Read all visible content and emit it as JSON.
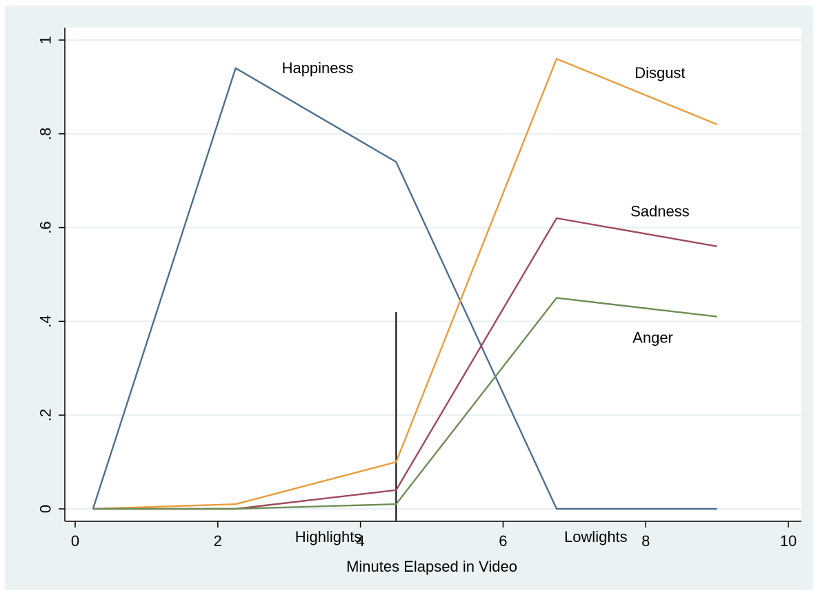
{
  "chart_data": {
    "type": "line",
    "title": "",
    "xlabel": "Minutes Elapsed in Video",
    "ylabel": "",
    "xlim": [
      0,
      10
    ],
    "ylim": [
      0,
      1
    ],
    "grid": true,
    "x_ticks": [
      0,
      2,
      4,
      6,
      8,
      10
    ],
    "x_tick_labels": [
      "0",
      "2",
      "4",
      "6",
      "8",
      "10"
    ],
    "y_ticks": [
      0,
      0.2,
      0.4,
      0.6,
      0.8,
      1
    ],
    "y_tick_labels": [
      "0",
      ".2",
      ".4",
      ".6",
      ".8",
      "1"
    ],
    "series": [
      {
        "name": "Happiness",
        "color": "#4e6e8e",
        "x": [
          0.25,
          2.25,
          4.5,
          6.75,
          9
        ],
        "values": [
          0,
          0.94,
          0.74,
          0,
          0
        ]
      },
      {
        "name": "Disgust",
        "color": "#ea9c3a",
        "x": [
          0.25,
          2.25,
          4.5,
          6.75,
          9
        ],
        "values": [
          0,
          0.01,
          0.1,
          0.96,
          0.82
        ]
      },
      {
        "name": "Sadness",
        "color": "#9e4a5a",
        "x": [
          0.25,
          2.25,
          4.5,
          6.75,
          9
        ],
        "values": [
          0,
          0,
          0.04,
          0.62,
          0.56
        ]
      },
      {
        "name": "Anger",
        "color": "#6e8e55",
        "x": [
          0.25,
          2.25,
          4.5,
          6.75,
          9
        ],
        "values": [
          0,
          0,
          0.01,
          0.45,
          0.41
        ]
      }
    ],
    "series_label_positions": [
      {
        "name": "Happiness",
        "x": 3.4,
        "y": 0.94
      },
      {
        "name": "Disgust",
        "x": 8.2,
        "y": 0.93
      },
      {
        "name": "Sadness",
        "x": 8.2,
        "y": 0.635
      },
      {
        "name": "Anger",
        "x": 8.1,
        "y": 0.365
      }
    ],
    "vertical_line": {
      "x": 4.5,
      "y_from": -0.025,
      "y_to": 0.42,
      "color": "#000000"
    },
    "annotations": [
      {
        "text": "Highlights",
        "x": 3.55,
        "y": -0.06
      },
      {
        "text": "Lowlights",
        "x": 7.3,
        "y": -0.06
      }
    ]
  }
}
